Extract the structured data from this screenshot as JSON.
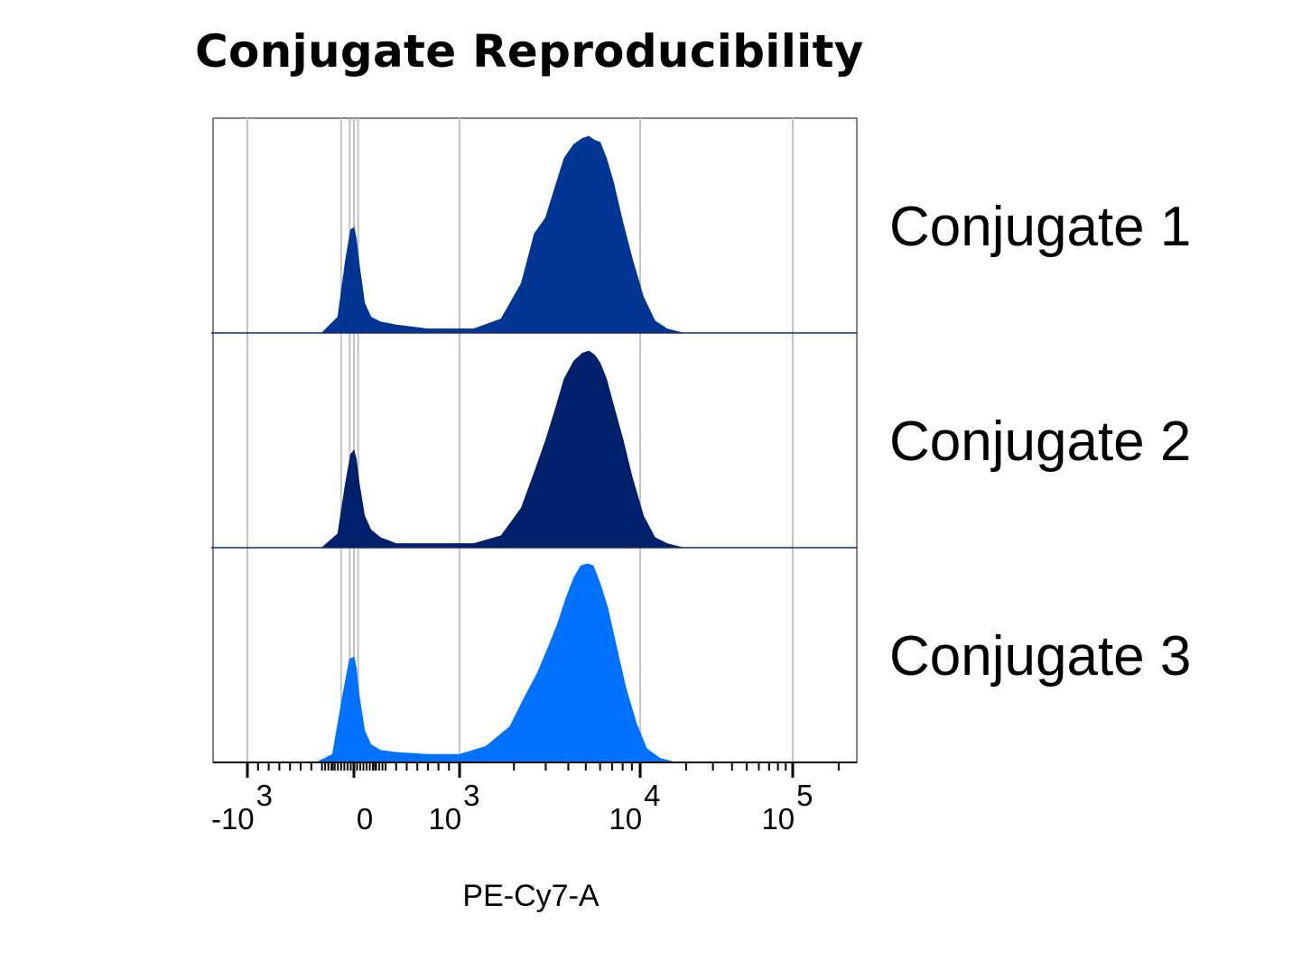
{
  "chart_data": {
    "type": "area",
    "title": "Conjugate Reproducibility",
    "xlabel": "PE-Cy7-A",
    "x_scale": "biexponential",
    "xlim": [
      -2000,
      200000
    ],
    "x_ticks": [
      {
        "value": -1000,
        "base": "-10",
        "exp": "3"
      },
      {
        "value": 0,
        "base": "0",
        "exp": ""
      },
      {
        "value": 1000,
        "base": "10",
        "exp": "3"
      },
      {
        "value": 10000,
        "base": "10",
        "exp": "4"
      },
      {
        "value": 100000,
        "base": "10",
        "exp": "5"
      }
    ],
    "layout": "stacked-offset histograms",
    "grid": true,
    "series": [
      {
        "name": "Conjugate 1",
        "color": "#003594",
        "x": [
          -300,
          -150,
          -80,
          -30,
          0,
          20,
          50,
          100,
          160,
          250,
          400,
          700,
          1200,
          1700,
          2200,
          2600,
          3000,
          3400,
          3800,
          4300,
          4800,
          5200,
          5600,
          6000,
          6500,
          7100,
          8000,
          9000,
          10500,
          12500,
          15000,
          19000
        ],
        "y": [
          0,
          0.08,
          0.36,
          0.52,
          0.53,
          0.48,
          0.34,
          0.15,
          0.08,
          0.055,
          0.04,
          0.02,
          0.02,
          0.07,
          0.25,
          0.5,
          0.58,
          0.74,
          0.88,
          0.95,
          0.98,
          0.99,
          0.97,
          0.96,
          0.88,
          0.76,
          0.56,
          0.38,
          0.18,
          0.06,
          0.02,
          0
        ]
      },
      {
        "name": "Conjugate 2",
        "color": "#00206B",
        "x": [
          -300,
          -150,
          -80,
          -30,
          0,
          20,
          50,
          100,
          160,
          250,
          400,
          700,
          1200,
          1700,
          2200,
          2600,
          3000,
          3400,
          3800,
          4300,
          4800,
          5200,
          5600,
          6000,
          6500,
          7100,
          8000,
          9000,
          10500,
          12500,
          15000,
          19000
        ],
        "y": [
          0,
          0.07,
          0.32,
          0.47,
          0.49,
          0.45,
          0.32,
          0.16,
          0.09,
          0.05,
          0.02,
          0.02,
          0.02,
          0.06,
          0.2,
          0.38,
          0.54,
          0.7,
          0.85,
          0.94,
          0.98,
          0.99,
          0.97,
          0.93,
          0.85,
          0.72,
          0.55,
          0.36,
          0.16,
          0.05,
          0.02,
          0
        ]
      },
      {
        "name": "Conjugate 3",
        "color": "#0072FF",
        "x": [
          -350,
          -200,
          -100,
          -40,
          0,
          20,
          50,
          100,
          160,
          250,
          400,
          700,
          1000,
          1400,
          1900,
          2300,
          2700,
          3100,
          3500,
          3900,
          4300,
          4700,
          5100,
          5500,
          6000,
          6600,
          7400,
          8300,
          9500,
          11000,
          13500,
          17000
        ],
        "y": [
          0,
          0.04,
          0.35,
          0.52,
          0.53,
          0.48,
          0.33,
          0.16,
          0.09,
          0.06,
          0.05,
          0.04,
          0.04,
          0.08,
          0.18,
          0.33,
          0.45,
          0.58,
          0.7,
          0.83,
          0.93,
          0.99,
          1.0,
          0.99,
          0.9,
          0.78,
          0.58,
          0.38,
          0.2,
          0.07,
          0.02,
          0
        ]
      }
    ]
  }
}
